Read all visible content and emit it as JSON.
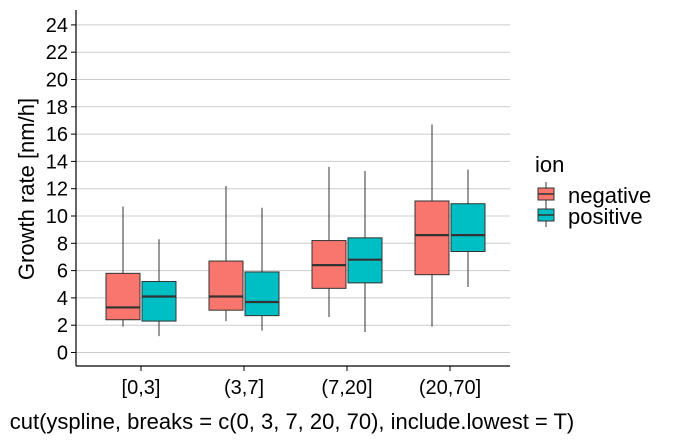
{
  "chart_data": {
    "type": "box",
    "title": "",
    "xlabel": "cut(yspline, breaks = c(0, 3, 7, 20, 70), include.lowest = T)",
    "ylabel": "Growth rate [nm/h]",
    "ylim": [
      -1,
      25
    ],
    "yticks": [
      0,
      2,
      4,
      6,
      8,
      10,
      12,
      14,
      16,
      18,
      20,
      22,
      24
    ],
    "categories": [
      "[0,3]",
      "(3,7]",
      "(7,20]",
      "(20,70]"
    ],
    "grid": "horizontal",
    "legend": {
      "title": "ion",
      "position": "right",
      "entries": [
        "negative",
        "positive"
      ]
    },
    "series": [
      {
        "name": "negative",
        "color": "#F8766D",
        "boxes": [
          {
            "min": 1.9,
            "q1": 2.4,
            "median": 3.3,
            "q3": 5.8,
            "max": 10.7
          },
          {
            "min": 2.3,
            "q1": 3.1,
            "median": 4.1,
            "q3": 6.7,
            "max": 12.2
          },
          {
            "min": 2.6,
            "q1": 4.7,
            "median": 6.4,
            "q3": 8.2,
            "max": 13.6
          },
          {
            "min": 1.9,
            "q1": 5.7,
            "median": 8.6,
            "q3": 11.1,
            "max": 16.7
          }
        ]
      },
      {
        "name": "positive",
        "color": "#00BFC4",
        "boxes": [
          {
            "min": 1.2,
            "q1": 2.3,
            "median": 4.1,
            "q3": 5.2,
            "max": 8.3
          },
          {
            "min": 1.6,
            "q1": 2.7,
            "median": 3.7,
            "q3": 5.9,
            "max": 10.6
          },
          {
            "min": 1.5,
            "q1": 5.1,
            "median": 6.8,
            "q3": 8.4,
            "max": 13.3
          },
          {
            "min": 4.8,
            "q1": 7.4,
            "median": 8.6,
            "q3": 10.9,
            "max": 13.4
          }
        ]
      }
    ]
  }
}
